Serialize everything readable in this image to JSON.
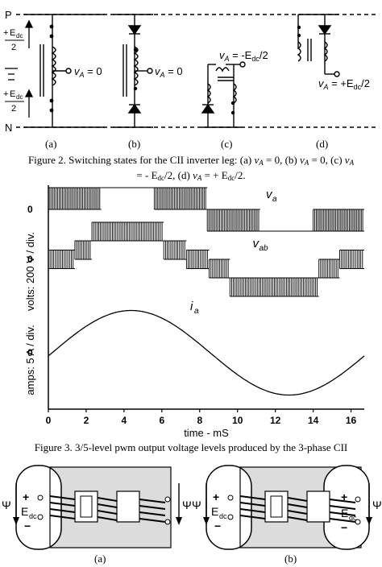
{
  "figure2": {
    "rail_top": "P",
    "rail_bottom": "N",
    "source_top": {
      "sign": "+",
      "main": "E",
      "sub": "dc",
      "den": "2"
    },
    "source_bottom": {
      "sign": "+",
      "main": "E",
      "sub": "dc",
      "den": "2"
    },
    "states": [
      {
        "label": "(a)",
        "output": "v_A = 0",
        "v": "v",
        "sub": "A",
        "rhs": " = 0"
      },
      {
        "label": "(b)",
        "output": "v_A = 0",
        "v": "v",
        "sub": "A",
        "rhs": " = 0"
      },
      {
        "label": "(c)",
        "output": "v_A = -E_dc/2",
        "v": "v",
        "sub": "A",
        "rhs": " = -E",
        "rhs_sub": "dc",
        "rhs_tail": "/2"
      },
      {
        "label": "(d)",
        "output": "v_A = +E_dc/2",
        "v": "v",
        "sub": "A",
        "rhs": " = +E",
        "rhs_sub": "dc",
        "rhs_tail": "/2"
      }
    ],
    "caption_prefix": "Figure 2. Switching states for the CII inverter leg: (a) ",
    "caption_a": "v_A = 0, (b) v_A = 0, (c) v_A",
    "caption_line2": "= - E_dc/2, (d) v_A = + E_dc/2."
  },
  "figure3": {
    "caption": "Figure 3. 3/5-level pwm output voltage levels produced by the 3-phase CII",
    "chart_data": {
      "type": "line",
      "xlabel": "time - mS",
      "xlim": [
        0,
        16.7
      ],
      "x_ticks": [
        "0",
        "2",
        "4",
        "6",
        "8",
        "10",
        "12",
        "14",
        "16"
      ],
      "voltage_axis_label": "volts: 200 V / div.",
      "current_axis_label": "amps: 5 A / div.",
      "zero_labels": [
        "0",
        "0",
        "0"
      ],
      "series": [
        {
          "name": "v_a",
          "display": "v",
          "display_sub": "a",
          "segments": [
            {
              "x0": 0.0,
              "x1": 2.8,
              "level": "pwm_upper"
            },
            {
              "x0": 2.8,
              "x1": 5.6,
              "level": "zero"
            },
            {
              "x0": 5.6,
              "x1": 8.4,
              "level": "pwm_upper"
            },
            {
              "x0": 8.4,
              "x1": 11.2,
              "level": "pwm_lower"
            },
            {
              "x0": 11.2,
              "x1": 14.0,
              "level": "negative"
            },
            {
              "x0": 14.0,
              "x1": 16.7,
              "level": "pwm_lower"
            }
          ]
        },
        {
          "name": "v_ab",
          "display": "v",
          "display_sub": "ab",
          "segments": [
            {
              "x0": 0.0,
              "x1": 1.4,
              "level": 0
            },
            {
              "x0": 1.4,
              "x1": 2.3,
              "level": 1
            },
            {
              "x0": 2.3,
              "x1": 6.1,
              "level": 2
            },
            {
              "x0": 6.1,
              "x1": 7.3,
              "level": 1
            },
            {
              "x0": 7.3,
              "x1": 8.5,
              "level": 0
            },
            {
              "x0": 8.5,
              "x1": 9.6,
              "level": -1
            },
            {
              "x0": 9.6,
              "x1": 14.3,
              "level": -2
            },
            {
              "x0": 14.3,
              "x1": 15.4,
              "level": -1
            },
            {
              "x0": 15.4,
              "x1": 16.7,
              "level": 0
            }
          ]
        },
        {
          "name": "i_a",
          "display": "i",
          "display_sub": "a",
          "amplitude_div": 1.05,
          "period_ms": 16.7,
          "phase_ms": 0.2
        }
      ]
    }
  },
  "figure4": {
    "panels": [
      {
        "label": "(a)",
        "psi_left": "Ψ",
        "psi_right": "Ψ",
        "edc": "E",
        "edc_sub": "dc",
        "plus": "+",
        "minus": "−"
      },
      {
        "label": "(b)",
        "psi_left": "Ψ",
        "psi_right": "Ψ",
        "edc": "E",
        "edc_sub": "dc",
        "plus": "+",
        "minus": "−"
      }
    ]
  }
}
